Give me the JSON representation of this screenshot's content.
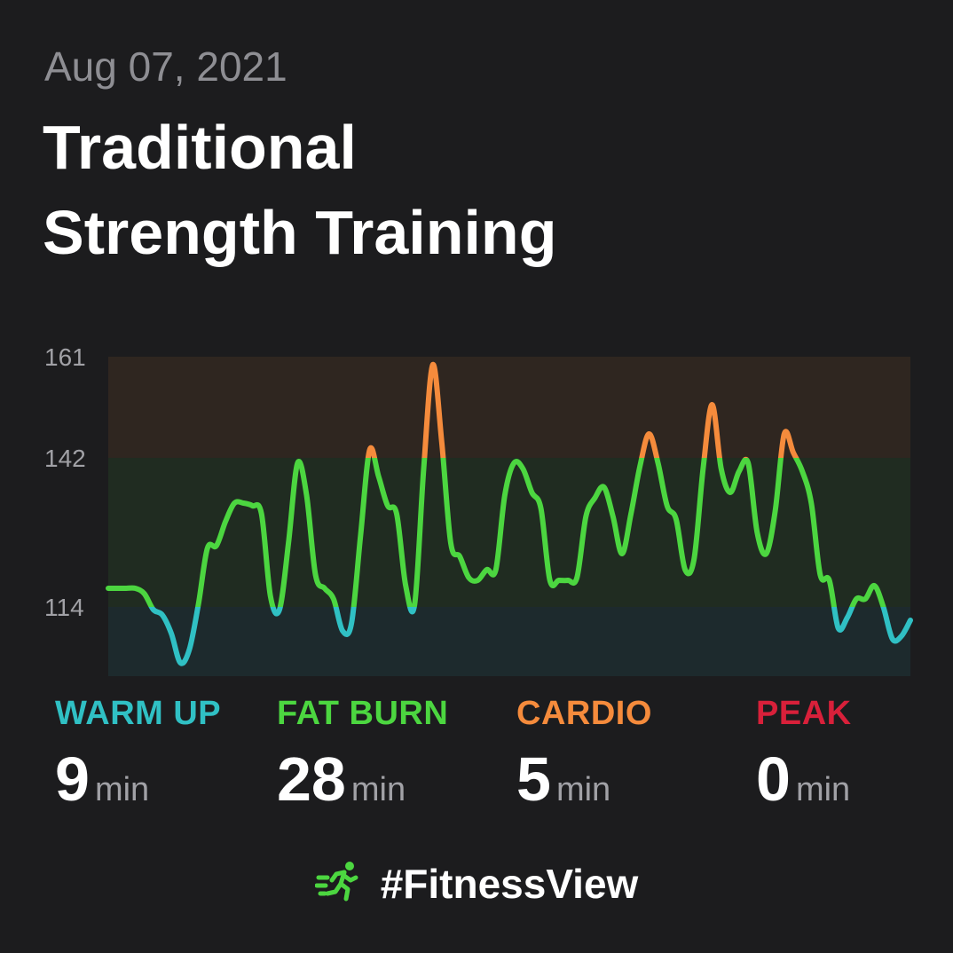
{
  "header": {
    "date": "Aug 07, 2021",
    "title_line1": "Traditional",
    "title_line2": "Strength Training"
  },
  "zones": [
    {
      "name": "WARM UP",
      "value": "9",
      "unit": "min",
      "color": "#30c0c4"
    },
    {
      "name": "FAT BURN",
      "value": "28",
      "unit": "min",
      "color": "#4cd640"
    },
    {
      "name": "CARDIO",
      "value": "5",
      "unit": "min",
      "color": "#f58b3c"
    },
    {
      "name": "PEAK",
      "value": "0",
      "unit": "min",
      "color": "#d8203a"
    }
  ],
  "footer": {
    "hashtag": "#FitnessView",
    "icon": "running-figure-icon"
  },
  "chart_data": {
    "type": "line",
    "title": "",
    "xlabel": "",
    "ylabel": "",
    "ylim": [
      101,
      161
    ],
    "y_ticks": [
      114,
      142,
      161
    ],
    "bands": [
      {
        "zone": "WARM UP",
        "from": 101,
        "to": 114,
        "color": "#30c0c4"
      },
      {
        "zone": "FAT BURN",
        "from": 114,
        "to": 142,
        "color": "#4cd640"
      },
      {
        "zone": "CARDIO",
        "from": 142,
        "to": 161,
        "color": "#f58b3c"
      }
    ],
    "series": [
      {
        "values": [
          117.5,
          117.5,
          117.5,
          117.5,
          116.5,
          113.5,
          112.5,
          109,
          103.5,
          106,
          114.5,
          125,
          125.5,
          130,
          133.5,
          133.5,
          133,
          131.5,
          116,
          113.5,
          126,
          141,
          135,
          120,
          117.5,
          115.5,
          109.5,
          111,
          127.5,
          143.5,
          138.5,
          133,
          131.5,
          118,
          114.5,
          140,
          159.5,
          145,
          126,
          123.5,
          119.5,
          119,
          121,
          121,
          135,
          141,
          140,
          135.5,
          132.5,
          119,
          119,
          119,
          119.5,
          131,
          134.5,
          136.5,
          131,
          124,
          131.5,
          140.5,
          146.5,
          141,
          133,
          130.5,
          121,
          123,
          140,
          152,
          140,
          135.5,
          139.5,
          141,
          128,
          124,
          132,
          146.5,
          143,
          139.5,
          133.5,
          120,
          119,
          110,
          112,
          115.5,
          115.5,
          118,
          114,
          108,
          108.5,
          111.5
        ]
      }
    ]
  }
}
